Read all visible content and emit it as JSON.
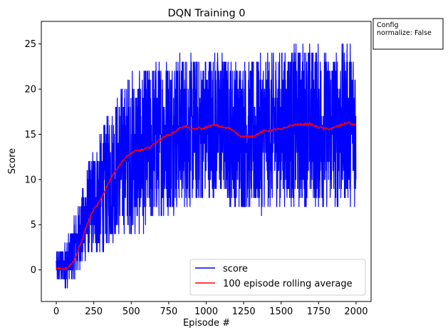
{
  "chart_data": {
    "type": "line",
    "title": "DQN Training 0",
    "xlabel": "Episode #",
    "ylabel": "Score",
    "xlim": [
      -100,
      2100
    ],
    "ylim": [
      -3.5,
      27.5
    ],
    "xticks": [
      0,
      250,
      500,
      750,
      1000,
      1250,
      1500,
      1750,
      2000
    ],
    "yticks": [
      0,
      5,
      10,
      15,
      20,
      25
    ],
    "legend_position": "lower-right",
    "series": [
      {
        "name": "score",
        "color": "#0000ff",
        "episodes": 2000,
        "trend": {
          "x": [
            0,
            50,
            100,
            150,
            200,
            250,
            300,
            350,
            400,
            450,
            500,
            550,
            600,
            650,
            700,
            750,
            800,
            850,
            900,
            950,
            1000,
            1050,
            1100,
            1150,
            1200,
            1250,
            1300,
            1350,
            1400,
            1450,
            1500,
            1550,
            1600,
            1650,
            1700,
            1750,
            1800,
            1850,
            1900,
            1950,
            2000
          ],
          "y": [
            0.5,
            0.5,
            1.5,
            3.5,
            6,
            7.5,
            8.5,
            10,
            11.5,
            12.5,
            13,
            13,
            13.5,
            14,
            14.5,
            15,
            15.5,
            15.5,
            15.5,
            15.5,
            16,
            16,
            16,
            15.5,
            15,
            15,
            14.8,
            15,
            15.5,
            15.5,
            15.5,
            16,
            16,
            16.2,
            16,
            15.8,
            15.5,
            15.8,
            15.8,
            16.3,
            16
          ]
        },
        "spread": {
          "x": [
            0,
            100,
            200,
            300,
            400,
            500,
            750,
            1000,
            1250,
            1500,
            1750,
            2000
          ],
          "y": [
            1.5,
            3,
            5,
            7,
            8,
            9,
            9,
            8,
            8.5,
            9,
            9,
            9
          ]
        },
        "min": -2,
        "max": 26
      },
      {
        "name": "100 episode rolling average",
        "color": "#ff0000",
        "x": [
          0,
          25,
          50,
          75,
          100,
          125,
          150,
          175,
          200,
          225,
          250,
          275,
          300,
          325,
          350,
          375,
          400,
          425,
          450,
          475,
          500,
          525,
          550,
          575,
          600,
          625,
          650,
          675,
          700,
          725,
          750,
          775,
          800,
          825,
          850,
          875,
          900,
          925,
          950,
          975,
          1000,
          1025,
          1050,
          1075,
          1100,
          1125,
          1150,
          1175,
          1200,
          1225,
          1250,
          1275,
          1300,
          1325,
          1350,
          1375,
          1400,
          1425,
          1450,
          1475,
          1500,
          1525,
          1550,
          1575,
          1600,
          1625,
          1650,
          1675,
          1700,
          1725,
          1750,
          1775,
          1800,
          1825,
          1850,
          1875,
          1900,
          1925,
          1950,
          1975,
          2000
        ],
        "y": [
          0.2,
          0.2,
          0.1,
          0.3,
          0.6,
          1.3,
          2.3,
          3.5,
          4.8,
          5.8,
          6.7,
          7.2,
          7.9,
          8.8,
          9.7,
          10.5,
          11.1,
          11.7,
          12.2,
          12.6,
          12.9,
          13.1,
          13.2,
          13.3,
          13.4,
          13.6,
          13.9,
          14.2,
          14.5,
          14.8,
          14.9,
          15.1,
          15.4,
          15.7,
          15.9,
          15.8,
          15.5,
          15.6,
          15.7,
          15.6,
          15.8,
          15.9,
          16.0,
          16.0,
          15.8,
          15.7,
          15.7,
          15.5,
          15.2,
          14.8,
          14.7,
          14.7,
          14.8,
          14.9,
          15.1,
          15.3,
          15.4,
          15.4,
          15.5,
          15.6,
          15.5,
          15.7,
          15.9,
          16.0,
          16.1,
          16.1,
          16.1,
          16.2,
          16.1,
          15.9,
          15.8,
          15.7,
          15.6,
          15.6,
          15.7,
          15.9,
          16.0,
          16.2,
          16.3,
          16.1,
          16.0
        ]
      }
    ]
  },
  "config_box": {
    "heading": "Config",
    "line1": "normalize: False"
  }
}
